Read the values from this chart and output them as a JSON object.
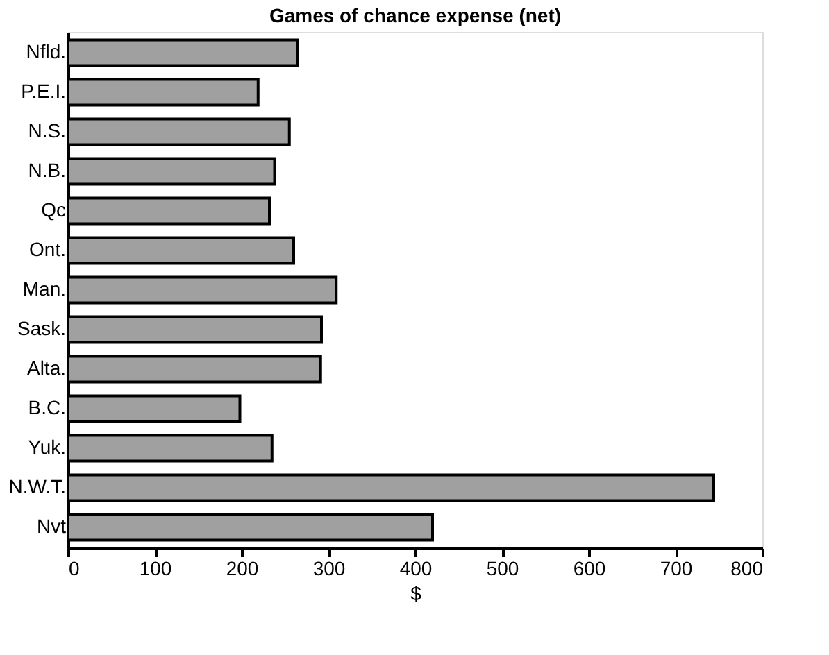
{
  "chart_data": {
    "type": "bar",
    "orientation": "horizontal",
    "title": "Games of chance expense (net)",
    "xlabel": "$",
    "categories": [
      "Nfld.",
      "P.E.I.",
      "N.S.",
      "N.B.",
      "Qc",
      "Ont.",
      "Man.",
      "Sask.",
      "Alta.",
      "B.C.",
      "Yuk.",
      "N.W.T.",
      "Nvt"
    ],
    "values": [
      264,
      219,
      255,
      238,
      232,
      260,
      309,
      292,
      291,
      198,
      235,
      744,
      420
    ],
    "color": "#a0a0a0",
    "xlim": [
      0,
      800
    ],
    "xticks": [
      0,
      100,
      200,
      300,
      400,
      500,
      600,
      700,
      800
    ],
    "grid": false
  }
}
